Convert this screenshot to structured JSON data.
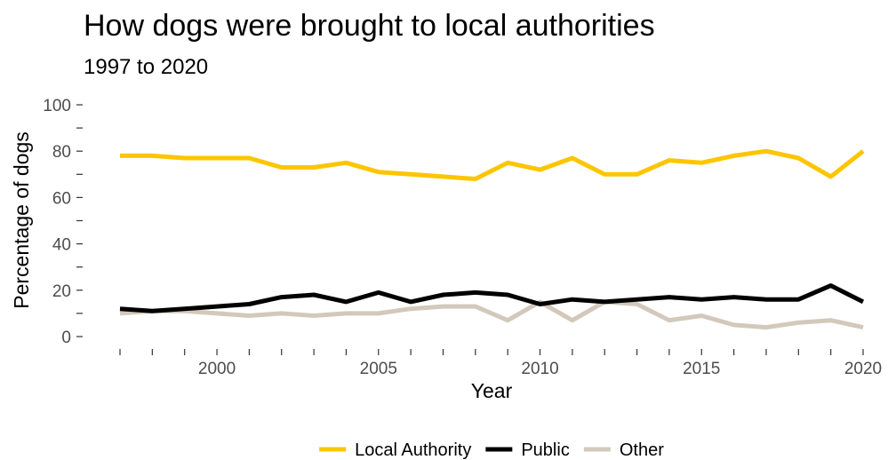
{
  "chart_data": {
    "type": "line",
    "title": "How dogs were brought to local authorities",
    "subtitle": "1997 to 2020",
    "xlabel": "Year",
    "ylabel": "Percentage of dogs",
    "xlim": [
      1997,
      2020
    ],
    "ylim": [
      0,
      100
    ],
    "x_ticks": [
      2000,
      2005,
      2010,
      2015,
      2020
    ],
    "y_ticks": [
      0,
      20,
      40,
      60,
      80,
      100
    ],
    "grid": false,
    "legend_position": "bottom",
    "x": [
      1997,
      1998,
      1999,
      2000,
      2001,
      2002,
      2003,
      2004,
      2005,
      2006,
      2007,
      2008,
      2009,
      2010,
      2011,
      2012,
      2013,
      2014,
      2015,
      2016,
      2017,
      2018,
      2019,
      2020
    ],
    "series": [
      {
        "name": "Local Authority",
        "color": "#fdc500",
        "values": [
          78,
          78,
          77,
          77,
          77,
          73,
          73,
          75,
          71,
          70,
          69,
          68,
          75,
          72,
          77,
          70,
          70,
          76,
          75,
          78,
          80,
          77,
          69,
          80
        ]
      },
      {
        "name": "Public",
        "color": "#000000",
        "values": [
          12,
          11,
          12,
          13,
          14,
          17,
          18,
          15,
          19,
          15,
          18,
          19,
          18,
          14,
          16,
          15,
          16,
          17,
          16,
          17,
          16,
          16,
          22,
          15
        ]
      },
      {
        "name": "Other",
        "color": "#d2c9bb",
        "values": [
          10,
          11,
          11,
          10,
          9,
          10,
          9,
          10,
          10,
          12,
          13,
          13,
          7,
          15,
          7,
          15,
          14,
          7,
          9,
          5,
          4,
          6,
          7,
          4
        ]
      }
    ]
  }
}
